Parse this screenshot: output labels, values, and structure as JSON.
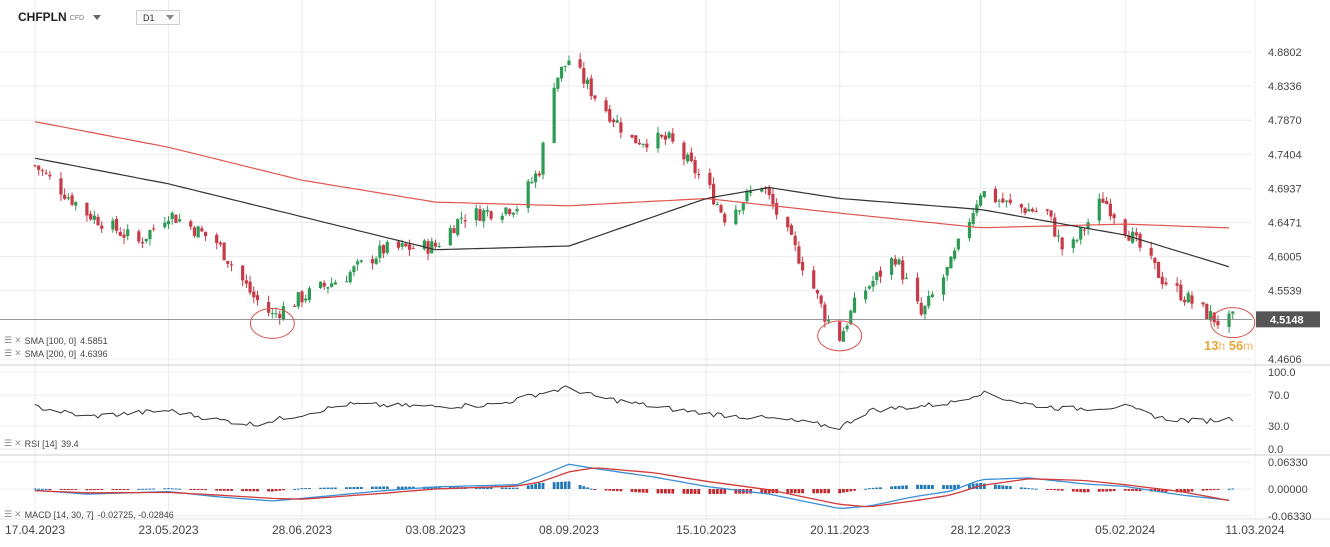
{
  "header": {
    "symbol": "CHFPLN",
    "symbol_type": "CFD",
    "timeframe": "D1"
  },
  "countdown": {
    "hours": "13",
    "hours_unit": "h",
    "minutes": "56",
    "minutes_unit": "m"
  },
  "indicators": {
    "sma100": {
      "label": "SMA [100, 0]",
      "value": "4.5851",
      "color": "#333333"
    },
    "sma200": {
      "label": "SMA [200, 0]",
      "value": "4.6396",
      "color": "#e0564f"
    },
    "rsi": {
      "label": "RSI [14]",
      "value": "39.4"
    },
    "macd": {
      "label": "MACD [14, 30, 7]",
      "value": "-0.02725, -0.02846"
    }
  },
  "colors": {
    "up": "#2e9b54",
    "down": "#c83a47",
    "grid": "#ececec",
    "price_line": "#777777",
    "price_tag": "#555555",
    "macd_line": "#3a8fd6",
    "signal_line": "#d33a3a",
    "hist_pos": "#1f77b4",
    "hist_neg": "#c0282e",
    "highlight": "#d9534f"
  },
  "chart_data": [
    {
      "type": "candlestick",
      "title": "CHFPLN",
      "x_ticks": [
        "17.04.2023",
        "23.05.2023",
        "28.06.2023",
        "03.08.2023",
        "08.09.2023",
        "15.10.2023",
        "20.11.2023",
        "28.12.2023",
        "05.02.2024",
        "11.03.2024"
      ],
      "y_ticks": [
        "4.8802",
        "4.8336",
        "4.7870",
        "4.7404",
        "4.6937",
        "4.6471",
        "4.6005",
        "4.5539",
        "4.4606"
      ],
      "ylim": [
        4.44,
        4.93
      ],
      "current_price": "4.5148",
      "close_path": [
        [
          "17.04.2023",
          4.725
        ],
        [
          "01.05.2023",
          4.66
        ],
        [
          "15.05.2023",
          4.62
        ],
        [
          "23.05.2023",
          4.66
        ],
        [
          "05.06.2023",
          4.62
        ],
        [
          "15.06.2023",
          4.545
        ],
        [
          "20.06.2023",
          4.52
        ],
        [
          "28.06.2023",
          4.545
        ],
        [
          "10.07.2023",
          4.575
        ],
        [
          "20.07.2023",
          4.61
        ],
        [
          "03.08.2023",
          4.615
        ],
        [
          "10.08.2023",
          4.655
        ],
        [
          "25.08.2023",
          4.67
        ],
        [
          "31.08.2023",
          4.72
        ],
        [
          "04.09.2023",
          4.84
        ],
        [
          "08.09.2023",
          4.87
        ],
        [
          "15.09.2023",
          4.82
        ],
        [
          "25.09.2023",
          4.76
        ],
        [
          "05.10.2023",
          4.76
        ],
        [
          "15.10.2023",
          4.7
        ],
        [
          "20.10.2023",
          4.655
        ],
        [
          "30.10.2023",
          4.7
        ],
        [
          "05.11.2023",
          4.64
        ],
        [
          "12.11.2023",
          4.57
        ],
        [
          "16.11.2023",
          4.52
        ],
        [
          "20.11.2023",
          4.49
        ],
        [
          "25.11.2023",
          4.545
        ],
        [
          "05.12.2023",
          4.6
        ],
        [
          "12.12.2023",
          4.52
        ],
        [
          "20.12.2023",
          4.59
        ],
        [
          "28.12.2023",
          4.69
        ],
        [
          "05.01.2024",
          4.67
        ],
        [
          "15.01.2024",
          4.66
        ],
        [
          "20.01.2024",
          4.6
        ],
        [
          "30.01.2024",
          4.68
        ],
        [
          "05.02.2024",
          4.64
        ],
        [
          "15.02.2024",
          4.57
        ],
        [
          "25.02.2024",
          4.53
        ],
        [
          "02.03.2024",
          4.508
        ],
        [
          "05.03.2024",
          4.515
        ]
      ],
      "sma100_path": [
        [
          "17.04.2023",
          4.735
        ],
        [
          "23.05.2023",
          4.7
        ],
        [
          "28.06.2023",
          4.655
        ],
        [
          "03.08.2023",
          4.61
        ],
        [
          "08.09.2023",
          4.615
        ],
        [
          "15.10.2023",
          4.68
        ],
        [
          "01.11.2023",
          4.695
        ],
        [
          "20.11.2023",
          4.68
        ],
        [
          "28.12.2023",
          4.665
        ],
        [
          "05.02.2024",
          4.63
        ],
        [
          "05.03.2024",
          4.5851
        ]
      ],
      "sma200_path": [
        [
          "17.04.2023",
          4.785
        ],
        [
          "23.05.2023",
          4.75
        ],
        [
          "28.06.2023",
          4.705
        ],
        [
          "03.08.2023",
          4.675
        ],
        [
          "08.09.2023",
          4.67
        ],
        [
          "15.10.2023",
          4.68
        ],
        [
          "20.11.2023",
          4.66
        ],
        [
          "28.12.2023",
          4.64
        ],
        [
          "05.02.2024",
          4.645
        ],
        [
          "05.03.2024",
          4.6396
        ]
      ],
      "highlights": [
        {
          "date": "20.06.2023",
          "price": 4.512
        },
        {
          "date": "20.11.2023",
          "price": 4.495
        },
        {
          "date": "05.03.2024",
          "price": 4.513
        }
      ]
    },
    {
      "type": "line",
      "title": "RSI [14]",
      "y_ticks": [
        "100.0",
        "70.0",
        "30.0",
        "0.0"
      ],
      "ylim": [
        0,
        100
      ],
      "path": [
        [
          "17.04.2023",
          55
        ],
        [
          "01.05.2023",
          42
        ],
        [
          "23.05.2023",
          50
        ],
        [
          "05.06.2023",
          38
        ],
        [
          "15.06.2023",
          32
        ],
        [
          "28.06.2023",
          45
        ],
        [
          "10.07.2023",
          58
        ],
        [
          "03.08.2023",
          55
        ],
        [
          "20.08.2023",
          58
        ],
        [
          "31.08.2023",
          72
        ],
        [
          "08.09.2023",
          80
        ],
        [
          "15.09.2023",
          68
        ],
        [
          "01.10.2023",
          55
        ],
        [
          "15.10.2023",
          46
        ],
        [
          "25.10.2023",
          42
        ],
        [
          "05.11.2023",
          38
        ],
        [
          "20.11.2023",
          28
        ],
        [
          "28.11.2023",
          50
        ],
        [
          "10.12.2023",
          55
        ],
        [
          "20.12.2023",
          60
        ],
        [
          "28.12.2023",
          73
        ],
        [
          "10.01.2024",
          58
        ],
        [
          "20.01.2024",
          52
        ],
        [
          "05.02.2024",
          55
        ],
        [
          "15.02.2024",
          40
        ],
        [
          "25.02.2024",
          36
        ],
        [
          "05.03.2024",
          39.4
        ]
      ]
    },
    {
      "type": "bar+line",
      "title": "MACD [14, 30, 7]",
      "y_ticks": [
        "0.06330",
        "0.00000",
        "-0.06330"
      ],
      "ylim": [
        -0.07,
        0.07
      ],
      "macd_path": [
        [
          "17.04.2023",
          -0.003
        ],
        [
          "01.05.2023",
          -0.012
        ],
        [
          "23.05.2023",
          -0.006
        ],
        [
          "05.06.2023",
          -0.018
        ],
        [
          "20.06.2023",
          -0.028
        ],
        [
          "28.06.2023",
          -0.022
        ],
        [
          "20.07.2023",
          -0.004
        ],
        [
          "03.08.2023",
          0.005
        ],
        [
          "25.08.2023",
          0.01
        ],
        [
          "31.08.2023",
          0.03
        ],
        [
          "08.09.2023",
          0.058
        ],
        [
          "15.09.2023",
          0.048
        ],
        [
          "01.10.2023",
          0.028
        ],
        [
          "15.10.2023",
          0.006
        ],
        [
          "01.11.2023",
          -0.012
        ],
        [
          "20.11.2023",
          -0.046
        ],
        [
          "28.11.2023",
          -0.04
        ],
        [
          "10.12.2023",
          -0.018
        ],
        [
          "20.12.2023",
          -0.005
        ],
        [
          "28.12.2023",
          0.022
        ],
        [
          "10.01.2024",
          0.026
        ],
        [
          "25.01.2024",
          0.012
        ],
        [
          "05.02.2024",
          0.006
        ],
        [
          "20.02.2024",
          -0.014
        ],
        [
          "05.03.2024",
          -0.02725
        ]
      ],
      "signal_path": [
        [
          "17.04.2023",
          -0.004
        ],
        [
          "01.05.2023",
          -0.009
        ],
        [
          "23.05.2023",
          -0.008
        ],
        [
          "05.06.2023",
          -0.014
        ],
        [
          "20.06.2023",
          -0.022
        ],
        [
          "28.06.2023",
          -0.024
        ],
        [
          "20.07.2023",
          -0.01
        ],
        [
          "03.08.2023",
          0.0
        ],
        [
          "25.08.2023",
          0.007
        ],
        [
          "31.08.2023",
          0.016
        ],
        [
          "08.09.2023",
          0.04
        ],
        [
          "15.09.2023",
          0.05
        ],
        [
          "01.10.2023",
          0.038
        ],
        [
          "15.10.2023",
          0.018
        ],
        [
          "01.11.2023",
          -0.002
        ],
        [
          "20.11.2023",
          -0.036
        ],
        [
          "28.11.2023",
          -0.042
        ],
        [
          "10.12.2023",
          -0.028
        ],
        [
          "20.12.2023",
          -0.014
        ],
        [
          "28.12.2023",
          0.008
        ],
        [
          "10.01.2024",
          0.024
        ],
        [
          "25.01.2024",
          0.02
        ],
        [
          "05.02.2024",
          0.01
        ],
        [
          "20.02.2024",
          -0.006
        ],
        [
          "05.03.2024",
          -0.02846
        ]
      ]
    }
  ]
}
